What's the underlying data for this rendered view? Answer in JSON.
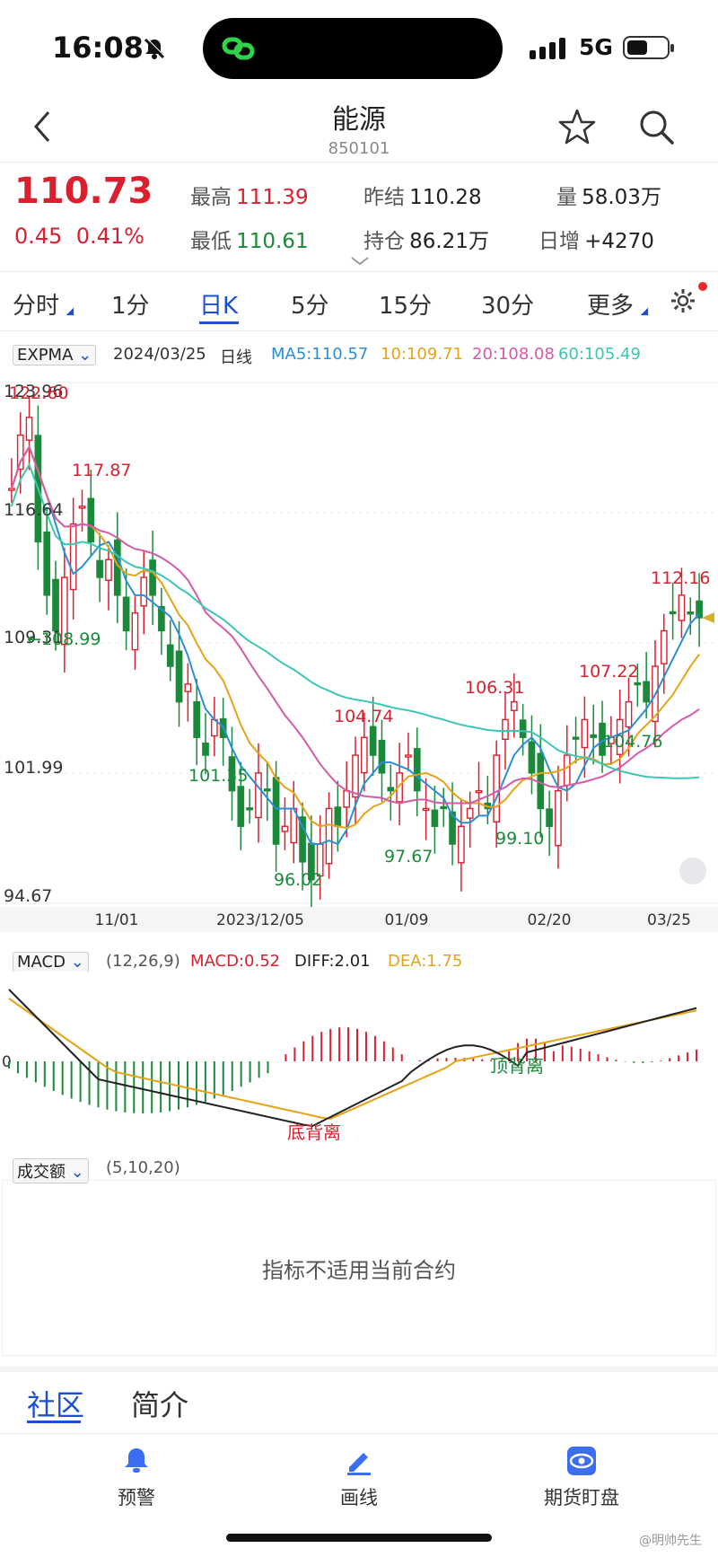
{
  "status": {
    "time": "16:08",
    "network": "5G"
  },
  "header": {
    "title": "能源",
    "code": "850101"
  },
  "quote": {
    "price": "110.73",
    "change": "0.45",
    "change_pct": "0.41%",
    "high_label": "最高",
    "high": "111.39",
    "low_label": "最低",
    "low": "110.61",
    "prev_close_label": "昨结",
    "prev_close": "110.28",
    "open_interest_label": "持仓",
    "open_interest": "86.21万",
    "volume_label": "量",
    "volume": "58.03万",
    "daily_oi_label": "日增",
    "daily_oi": "+4270"
  },
  "tabs": [
    {
      "label": "分时"
    },
    {
      "label": "1分"
    },
    {
      "label": "日K"
    },
    {
      "label": "5分"
    },
    {
      "label": "15分"
    },
    {
      "label": "30分"
    },
    {
      "label": "更多"
    }
  ],
  "legend": {
    "indicator": "EXPMA",
    "date": "2024/03/25",
    "period": "日线",
    "ma5": "MA5:110.57",
    "ma10": "10:109.71",
    "ma20": "20:108.08",
    "ma60": "60:105.49"
  },
  "macd_legend": {
    "indicator": "MACD",
    "params": "(12,26,9)",
    "macd": "MACD:0.52",
    "diff": "DIFF:2.01",
    "dea": "DEA:1.75"
  },
  "volume_panel": {
    "indicator": "成交额",
    "params": "(5,10,20)",
    "message": "指标不适用当前合约"
  },
  "bottom_tabs": [
    {
      "label": "社区"
    },
    {
      "label": "简介"
    }
  ],
  "bottom_nav": [
    {
      "label": "预警"
    },
    {
      "label": "画线"
    },
    {
      "label": "期货盯盘"
    }
  ],
  "watermark": "@明帅先生",
  "colors": {
    "up": "#d8202f",
    "down": "#1a8a3a",
    "ma5": "#2b8fd6",
    "ma10": "#e6a317",
    "ma20": "#d65aa8",
    "ma60": "#3cc6b3",
    "accent": "#1d4fd1"
  },
  "chart_data": {
    "type": "candlestick",
    "y_axis_labels": [
      "123.96",
      "116.64",
      "109.31",
      "101.99",
      "94.67"
    ],
    "x_axis_labels": [
      "11/01",
      "2023/12/05",
      "01/09",
      "02/20",
      "03/25"
    ],
    "annotations": [
      "122.60",
      "117.87",
      "←108.99",
      "101.35",
      "96.02",
      "104.74",
      "97.67",
      "106.31",
      "99.10",
      "107.22",
      "104.76",
      "112.16"
    ],
    "macd_zero_label": "0",
    "macd_annotations": [
      "底背离",
      "顶背离"
    ],
    "ylim": [
      94.67,
      123.96
    ],
    "last_close": 110.73
  }
}
